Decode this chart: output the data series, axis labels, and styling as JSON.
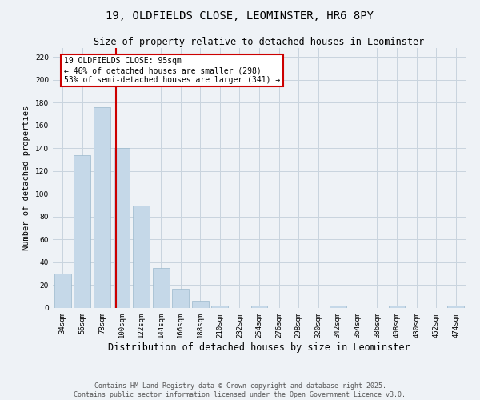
{
  "title": "19, OLDFIELDS CLOSE, LEOMINSTER, HR6 8PY",
  "subtitle": "Size of property relative to detached houses in Leominster",
  "xlabel": "Distribution of detached houses by size in Leominster",
  "ylabel": "Number of detached properties",
  "categories": [
    "34sqm",
    "56sqm",
    "78sqm",
    "100sqm",
    "122sqm",
    "144sqm",
    "166sqm",
    "188sqm",
    "210sqm",
    "232sqm",
    "254sqm",
    "276sqm",
    "298sqm",
    "320sqm",
    "342sqm",
    "364sqm",
    "386sqm",
    "408sqm",
    "430sqm",
    "452sqm",
    "474sqm"
  ],
  "values": [
    30,
    134,
    176,
    140,
    90,
    35,
    17,
    6,
    2,
    0,
    2,
    0,
    0,
    0,
    2,
    0,
    0,
    2,
    0,
    0,
    2
  ],
  "bar_color": "#c5d8e8",
  "bar_edgecolor": "#9ab8cc",
  "grid_color": "#c8d4de",
  "background_color": "#eef2f6",
  "red_line_x": 2.72,
  "annotation_text": "19 OLDFIELDS CLOSE: 95sqm\n← 46% of detached houses are smaller (298)\n53% of semi-detached houses are larger (341) →",
  "annotation_box_color": "#ffffff",
  "annotation_box_edgecolor": "#cc0000",
  "red_line_color": "#cc0000",
  "ylim": [
    0,
    228
  ],
  "yticks": [
    0,
    20,
    40,
    60,
    80,
    100,
    120,
    140,
    160,
    180,
    200,
    220
  ],
  "footer_line1": "Contains HM Land Registry data © Crown copyright and database right 2025.",
  "footer_line2": "Contains public sector information licensed under the Open Government Licence v3.0.",
  "title_fontsize": 10,
  "subtitle_fontsize": 8.5,
  "xlabel_fontsize": 8.5,
  "ylabel_fontsize": 7.5,
  "tick_fontsize": 6.5,
  "annotation_fontsize": 7,
  "footer_fontsize": 6
}
